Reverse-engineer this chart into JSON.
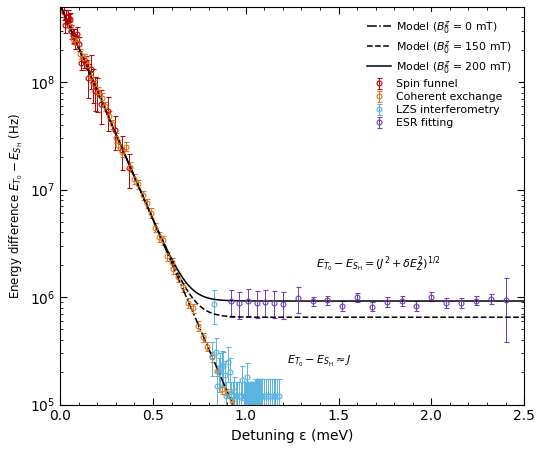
{
  "title": "",
  "xlabel": "Detuning ε (meV)",
  "ylabel": "Energy difference $E_{T_0} - E_{S_\\mathrm{H}}$ (Hz)",
  "xlim": [
    0,
    2.5
  ],
  "ylim_log": [
    100000.0,
    500000000.0
  ],
  "legend_labels": [
    "Spin funnel",
    "Coherent exchange",
    "LZS interferometry",
    "ESR fitting",
    "Model ($B_0^z$ = 0 mT)",
    "Model ($B_0^z$ = 150 mT)",
    "Model ($B_0^z$ = 200 mT)"
  ],
  "colors": {
    "spin_funnel": "#c00000",
    "coherent_exchange": "#e07820",
    "lzs": "#5ab4e0",
    "esr": "#7040b8"
  },
  "model_J0": 520000000.0,
  "model_alpha": 9.2,
  "model_dEz_200": 920000.0,
  "model_dEz_150": 650000.0
}
